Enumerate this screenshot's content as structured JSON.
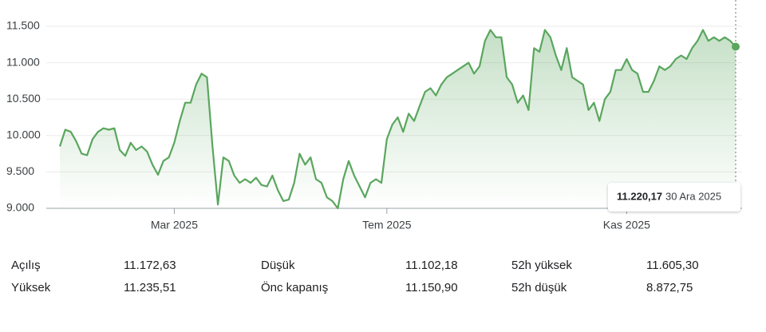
{
  "chart_data": {
    "type": "line",
    "categories": [
      null,
      null,
      null,
      null,
      null,
      null,
      null,
      null,
      null,
      null,
      null,
      null,
      null,
      null,
      null,
      null,
      null,
      null,
      null,
      null,
      null,
      "Mar 2025",
      null,
      null,
      null,
      null,
      null,
      null,
      null,
      null,
      null,
      null,
      null,
      null,
      null,
      null,
      null,
      null,
      null,
      null,
      null,
      null,
      null,
      null,
      null,
      null,
      null,
      null,
      null,
      null,
      null,
      null,
      null,
      null,
      null,
      null,
      null,
      null,
      null,
      null,
      "Tem 2025",
      null,
      null,
      null,
      null,
      null,
      null,
      null,
      null,
      null,
      null,
      null,
      null,
      null,
      null,
      null,
      null,
      null,
      null,
      null,
      null,
      null,
      null,
      null,
      null,
      null,
      null,
      null,
      null,
      null,
      null,
      null,
      null,
      null,
      null,
      null,
      null,
      null,
      null,
      null,
      null,
      null,
      null,
      null,
      "Kas 2025",
      null,
      null,
      null,
      null,
      null,
      null,
      null,
      null,
      null,
      null,
      null,
      null,
      null,
      null,
      null,
      null,
      null,
      null,
      null,
      null
    ],
    "series": [
      {
        "color": "#5aa65e",
        "values": [
          9850,
          10080,
          10050,
          9920,
          9750,
          9730,
          9950,
          10050,
          10100,
          10080,
          10100,
          9800,
          9720,
          9900,
          9800,
          9850,
          9780,
          9600,
          9460,
          9650,
          9700,
          9900,
          10200,
          10450,
          10450,
          10700,
          10850,
          10800,
          9850,
          9050,
          9700,
          9650,
          9450,
          9350,
          9400,
          9350,
          9420,
          9320,
          9300,
          9450,
          9250,
          9100,
          9120,
          9350,
          9750,
          9600,
          9700,
          9400,
          9350,
          9150,
          9100,
          9000,
          9400,
          9650,
          9450,
          9300,
          9150,
          9350,
          9400,
          9350,
          9950,
          10150,
          10250,
          10050,
          10300,
          10200,
          10400,
          10600,
          10650,
          10550,
          10700,
          10800,
          10850,
          10900,
          10950,
          11000,
          10850,
          10950,
          11300,
          11450,
          11350,
          11350,
          10800,
          10700,
          10450,
          10550,
          10350,
          11200,
          11150,
          11450,
          11350,
          11100,
          10900,
          11200,
          10800,
          10750,
          10700,
          10350,
          10450,
          10200,
          10500,
          10600,
          10900,
          10900,
          11050,
          10900,
          10850,
          10600,
          10600,
          10750,
          10950,
          10900,
          10950,
          11050,
          11100,
          11050,
          11200,
          11300,
          11450,
          11300,
          11350,
          11300,
          11350,
          11300,
          11220.17
        ]
      }
    ],
    "ylim": [
      9000,
      11650
    ],
    "yticks": [
      {
        "value": 9000,
        "label": "9.000"
      },
      {
        "value": 9500,
        "label": "9.500"
      },
      {
        "value": 10000,
        "label": "10.000"
      },
      {
        "value": 10500,
        "label": "10.500"
      },
      {
        "value": 11000,
        "label": "11.000"
      },
      {
        "value": 11500,
        "label": "11.500"
      }
    ],
    "grid": true,
    "tooltip": {
      "label": "11.220,17",
      "date": "30 Ara 2025"
    }
  },
  "stats": [
    {
      "label": "Açılış",
      "value": "11.172,63"
    },
    {
      "label": "Düşük",
      "value": "11.102,18"
    },
    {
      "label": "52h yüksek",
      "value": "11.605,30"
    },
    {
      "label": "Yüksek",
      "value": "11.235,51"
    },
    {
      "label": "Önc kapanış",
      "value": "11.150,90"
    },
    {
      "label": "52h düşük",
      "value": "8.872,75"
    }
  ]
}
